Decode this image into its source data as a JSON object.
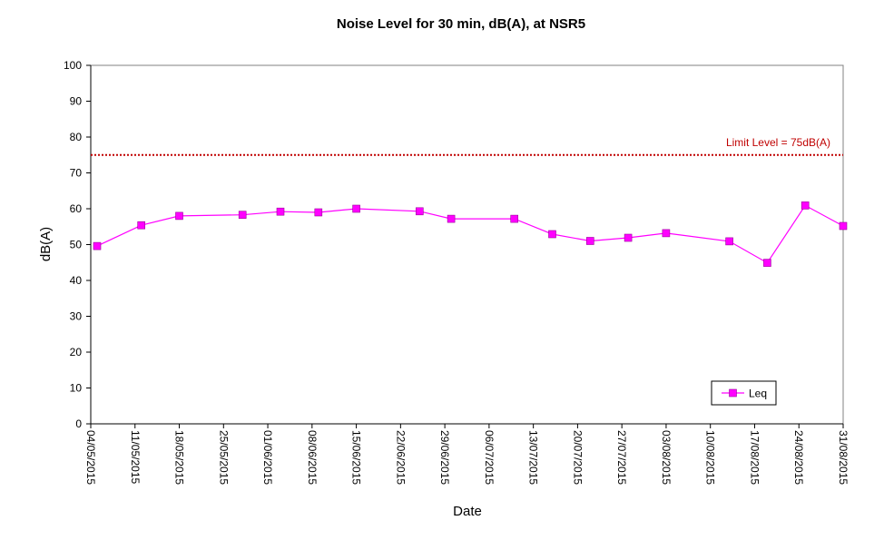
{
  "chart_data": {
    "type": "line",
    "title": "Noise Level for 30 min, dB(A), at NSR5",
    "xlabel": "Date",
    "ylabel": "dB(A)",
    "ylim": [
      0,
      100
    ],
    "yticks": [
      0,
      10,
      20,
      30,
      40,
      50,
      60,
      70,
      80,
      90,
      100
    ],
    "xlim": [
      "04/05/2015",
      "31/08/2015"
    ],
    "xticks": [
      "04/05/2015",
      "11/05/2015",
      "18/05/2015",
      "25/05/2015",
      "01/06/2015",
      "08/06/2015",
      "15/06/2015",
      "22/06/2015",
      "29/06/2015",
      "06/07/2015",
      "13/07/2015",
      "20/07/2015",
      "27/07/2015",
      "03/08/2015",
      "10/08/2015",
      "17/08/2015",
      "24/08/2015",
      "31/08/2015"
    ],
    "grid": false,
    "legend": "bottom-right",
    "series": [
      {
        "name": "Leq",
        "color": "#ff00ff",
        "marker": "square",
        "points": [
          {
            "x": "05/05/2015",
            "y": 49.6
          },
          {
            "x": "12/05/2015",
            "y": 55.4
          },
          {
            "x": "18/05/2015",
            "y": 58.0
          },
          {
            "x": "28/05/2015",
            "y": 58.3
          },
          {
            "x": "03/06/2015",
            "y": 59.2
          },
          {
            "x": "09/06/2015",
            "y": 59.0
          },
          {
            "x": "15/06/2015",
            "y": 60.0
          },
          {
            "x": "25/06/2015",
            "y": 59.3
          },
          {
            "x": "30/06/2015",
            "y": 57.2
          },
          {
            "x": "10/07/2015",
            "y": 57.2
          },
          {
            "x": "16/07/2015",
            "y": 52.9
          },
          {
            "x": "22/07/2015",
            "y": 51.0
          },
          {
            "x": "28/07/2015",
            "y": 51.9
          },
          {
            "x": "03/08/2015",
            "y": 53.2
          },
          {
            "x": "13/08/2015",
            "y": 50.9
          },
          {
            "x": "19/08/2015",
            "y": 44.9
          },
          {
            "x": "25/08/2015",
            "y": 60.9
          },
          {
            "x": "31/08/2015",
            "y": 55.2
          }
        ]
      }
    ],
    "limit_line": {
      "y": 75,
      "label": "Limit Level  = 75dB(A)",
      "color": "#c00000"
    }
  }
}
